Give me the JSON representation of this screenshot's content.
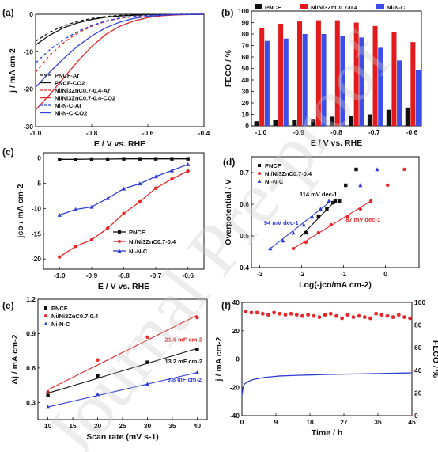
{
  "watermark": "Journal Pre-proof",
  "colors": {
    "black": "#111111",
    "red": "#e8272a",
    "blue": "#2e3fd6",
    "bar_red": "#e31a1c",
    "bar_blue": "#3d4ee8"
  },
  "chart_data": [
    {
      "id": "a",
      "panel_label": "(a)",
      "type": "line",
      "xlabel": "E / V vs. RHE",
      "ylabel": "j / mA cm-2",
      "xlim": [
        -1.0,
        -0.4
      ],
      "ylim": [
        -30,
        0
      ],
      "xticks": [
        "-1.0",
        "-0.8",
        "-0.6",
        "-0.4"
      ],
      "yticks": [
        "0",
        "-10",
        "-20",
        "-30"
      ],
      "legend_position": "bottom-left",
      "series": [
        {
          "name": "PNCF-Ar",
          "color": "#111111",
          "dash": true,
          "x": [
            -1.0,
            -0.95,
            -0.9,
            -0.85,
            -0.8,
            -0.75,
            -0.7,
            -0.65,
            -0.6,
            -0.55,
            -0.5,
            -0.45,
            -0.4
          ],
          "y": [
            -7.2,
            -4.8,
            -3.1,
            -1.9,
            -1.1,
            -0.6,
            -0.3,
            -0.15,
            -0.08,
            -0.04,
            -0.02,
            -0.01,
            0
          ]
        },
        {
          "name": "PNCF-CO2",
          "color": "#111111",
          "dash": false,
          "x": [
            -1.0,
            -0.95,
            -0.9,
            -0.85,
            -0.8,
            -0.75,
            -0.7,
            -0.65,
            -0.6,
            -0.55,
            -0.5,
            -0.45,
            -0.4
          ],
          "y": [
            -8.2,
            -5.6,
            -3.6,
            -2.3,
            -1.4,
            -0.8,
            -0.45,
            -0.25,
            -0.12,
            -0.06,
            -0.03,
            -0.01,
            0
          ]
        },
        {
          "name": "Ni/Ni3ZnC0.7-0.4-Ar",
          "color": "#e8272a",
          "dash": true,
          "x": [
            -1.0,
            -0.95,
            -0.9,
            -0.85,
            -0.8,
            -0.75,
            -0.7,
            -0.65,
            -0.6,
            -0.55,
            -0.5,
            -0.45,
            -0.4
          ],
          "y": [
            -15.5,
            -11.0,
            -7.6,
            -5.0,
            -3.2,
            -1.9,
            -1.1,
            -0.6,
            -0.3,
            -0.15,
            -0.07,
            -0.03,
            0
          ]
        },
        {
          "name": "Ni/Ni3ZnC0.7-0.4-CO2",
          "color": "#e8272a",
          "dash": false,
          "x": [
            -1.0,
            -0.95,
            -0.9,
            -0.85,
            -0.8,
            -0.75,
            -0.7,
            -0.65,
            -0.6,
            -0.55,
            -0.5,
            -0.45,
            -0.4
          ],
          "y": [
            -25.5,
            -21.5,
            -17.0,
            -12.6,
            -8.6,
            -5.4,
            -3.2,
            -1.8,
            -0.9,
            -0.4,
            -0.18,
            -0.07,
            0
          ]
        },
        {
          "name": "Ni-N-C-Ar",
          "color": "#2e3fd6",
          "dash": true,
          "x": [
            -1.0,
            -0.95,
            -0.9,
            -0.85,
            -0.8,
            -0.75,
            -0.7,
            -0.65,
            -0.6,
            -0.55,
            -0.5,
            -0.45,
            -0.4
          ],
          "y": [
            -13.0,
            -9.5,
            -6.8,
            -4.6,
            -3.0,
            -1.8,
            -1.0,
            -0.55,
            -0.28,
            -0.14,
            -0.06,
            -0.02,
            0
          ]
        },
        {
          "name": "Ni-N-C-CO2",
          "color": "#2e3fd6",
          "dash": false,
          "x": [
            -1.0,
            -0.95,
            -0.9,
            -0.85,
            -0.8,
            -0.75,
            -0.7,
            -0.65,
            -0.6,
            -0.55,
            -0.5,
            -0.45,
            -0.4
          ],
          "y": [
            -19.5,
            -15.5,
            -11.8,
            -8.5,
            -5.8,
            -3.6,
            -2.1,
            -1.1,
            -0.55,
            -0.25,
            -0.1,
            -0.04,
            0
          ]
        }
      ]
    },
    {
      "id": "b",
      "panel_label": "(b)",
      "type": "bar",
      "xlabel": "E / V vs. RHE",
      "ylabel": "FECO / %",
      "ylim": [
        0,
        100
      ],
      "yticks": [
        "0",
        "10",
        "20",
        "30",
        "40",
        "50",
        "60",
        "70",
        "80",
        "90",
        "100"
      ],
      "categories": [
        "-1.0",
        "-0.95",
        "-0.9",
        "-0.85",
        "-0.8",
        "-0.75",
        "-0.7",
        "-0.65",
        "-0.6"
      ],
      "category_tick_labels": [
        "-1.0",
        "",
        "-0.9",
        "",
        "-0.8",
        "",
        "-0.7",
        "",
        "-0.6"
      ],
      "legend_position": "top",
      "series": [
        {
          "name": "PNCF",
          "color": "#111111",
          "values": [
            4,
            5,
            5,
            6,
            8,
            9,
            10,
            14,
            16
          ]
        },
        {
          "name": "Ni/Ni3ZnC0.7-0.4",
          "color": "#e31a1c",
          "values": [
            85,
            89,
            91,
            92,
            92,
            90,
            87,
            82,
            73
          ]
        },
        {
          "name": "Ni-N-C",
          "color": "#3d4ee8",
          "values": [
            74,
            76,
            80,
            80,
            78,
            77,
            68,
            57,
            49
          ]
        }
      ]
    },
    {
      "id": "c",
      "panel_label": "(c)",
      "type": "line",
      "xlabel": "E / V vs. RHE",
      "ylabel": "jco / mA cm-2",
      "xlim": [
        -1.05,
        -0.55
      ],
      "ylim": [
        -22,
        1
      ],
      "xticks": [
        "-1.0",
        "-0.9",
        "-0.8",
        "-0.7",
        "-0.6"
      ],
      "yticks": [
        "0",
        "-5",
        "-10",
        "-15",
        "-20"
      ],
      "legend_position": "bottom-right",
      "series": [
        {
          "name": "PNCF",
          "color": "#111111",
          "marker": "square",
          "x": [
            -1.0,
            -0.95,
            -0.9,
            -0.85,
            -0.8,
            -0.75,
            -0.7,
            -0.65,
            -0.6
          ],
          "y": [
            -0.3,
            -0.3,
            -0.25,
            -0.25,
            -0.2,
            -0.2,
            -0.2,
            -0.2,
            -0.2
          ]
        },
        {
          "name": "Ni/Ni3ZnC0.7-0.4",
          "color": "#e8272a",
          "marker": "circle",
          "x": [
            -1.0,
            -0.95,
            -0.9,
            -0.85,
            -0.8,
            -0.75,
            -0.7,
            -0.65,
            -0.6
          ],
          "y": [
            -19.6,
            -17.5,
            -16.2,
            -13.9,
            -11.0,
            -8.7,
            -6.0,
            -4.2,
            -2.6
          ]
        },
        {
          "name": "Ni-N-C",
          "color": "#2e3fd6",
          "marker": "triangle",
          "x": [
            -1.0,
            -0.95,
            -0.9,
            -0.85,
            -0.8,
            -0.75,
            -0.7,
            -0.65,
            -0.6
          ],
          "y": [
            -11.3,
            -10.2,
            -9.7,
            -8.0,
            -6.1,
            -5.1,
            -3.7,
            -2.5,
            -1.3
          ]
        }
      ]
    },
    {
      "id": "d",
      "panel_label": "(d)",
      "type": "scatter",
      "xlabel": "Log(-jco/mA cm-2)",
      "ylabel": "Overpotential / V",
      "xlim": [
        -3.2,
        0.8
      ],
      "ylim": [
        0.4,
        0.75
      ],
      "xticks": [
        "-3",
        "-2",
        "-1",
        "0"
      ],
      "yticks": [
        "0.4",
        "0.5",
        "0.6",
        "0.7"
      ],
      "legend_position": "top-left",
      "series": [
        {
          "name": "PNCF",
          "color": "#111111",
          "marker": "square",
          "x": [
            -1.9,
            -1.6,
            -1.4,
            -1.25,
            -1.2,
            -1.1,
            -0.95,
            -0.7
          ],
          "y": [
            0.51,
            0.56,
            0.585,
            0.605,
            0.61,
            0.61,
            0.66,
            0.71
          ]
        },
        {
          "name": "Ni/Ni3ZnC0.7-0.4",
          "color": "#e8272a",
          "marker": "circle",
          "x": [
            -2.2,
            -1.9,
            -1.6,
            -1.3,
            -0.9,
            -0.6,
            -0.35,
            0.05,
            0.45
          ],
          "y": [
            0.46,
            0.48,
            0.51,
            0.535,
            0.56,
            0.585,
            0.61,
            0.66,
            0.71
          ]
        },
        {
          "name": "Ni-N-C",
          "color": "#2e3fd6",
          "marker": "triangle",
          "x": [
            -2.75,
            -2.45,
            -2.2,
            -1.95,
            -1.75,
            -1.55,
            -1.35,
            -0.6,
            -0.2
          ],
          "y": [
            0.46,
            0.485,
            0.51,
            0.535,
            0.56,
            0.585,
            0.61,
            0.66,
            0.71
          ]
        }
      ],
      "fit_lines": [
        {
          "color": "#111111",
          "x": [
            -2.05,
            -1.2
          ],
          "y": [
            0.495,
            0.61
          ]
        },
        {
          "color": "#e8272a",
          "x": [
            -2.2,
            -0.35
          ],
          "y": [
            0.46,
            0.61
          ]
        },
        {
          "color": "#2e3fd6",
          "x": [
            -2.75,
            -1.3
          ],
          "y": [
            0.46,
            0.61
          ]
        }
      ],
      "annotations": [
        {
          "text": "114 mV dec-1",
          "color": "#111111",
          "x": -2.05,
          "y": 0.625
        },
        {
          "text": "94 mV dec-1",
          "color": "#2e3fd6",
          "x": -2.9,
          "y": 0.535
        },
        {
          "text": "87 mV dec-1",
          "color": "#e8272a",
          "x": -0.95,
          "y": 0.545
        }
      ]
    },
    {
      "id": "e",
      "panel_label": "(e)",
      "type": "scatter",
      "xlabel": "Scan rate (mV s-1)",
      "ylabel": "Δj / mA cm-2",
      "xlim": [
        8,
        42
      ],
      "ylim": [
        0.15,
        1.2
      ],
      "xticks": [
        "10",
        "15",
        "20",
        "25",
        "30",
        "35",
        "40"
      ],
      "yticks": [
        "0.3",
        "0.6",
        "0.9",
        "1.2"
      ],
      "legend_position": "top-left",
      "series": [
        {
          "name": "PNCF",
          "color": "#111111",
          "marker": "square",
          "x": [
            10,
            20,
            30,
            40
          ],
          "y": [
            0.36,
            0.53,
            0.65,
            0.76
          ]
        },
        {
          "name": "Ni/Ni3ZnC0.7-0.4",
          "color": "#e8272a",
          "marker": "circle",
          "x": [
            10,
            20,
            30,
            40
          ],
          "y": [
            0.39,
            0.67,
            0.87,
            1.04
          ]
        },
        {
          "name": "Ni-N-C",
          "color": "#2e3fd6",
          "marker": "triangle",
          "x": [
            10,
            20,
            30,
            40
          ],
          "y": [
            0.26,
            0.37,
            0.46,
            0.56
          ]
        }
      ],
      "fit_lines": [
        {
          "color": "#111111",
          "x": [
            10,
            40
          ],
          "y": [
            0.38,
            0.77
          ]
        },
        {
          "color": "#e8272a",
          "x": [
            10,
            40
          ],
          "y": [
            0.41,
            1.06
          ]
        },
        {
          "color": "#2e3fd6",
          "x": [
            10,
            40
          ],
          "y": [
            0.26,
            0.56
          ]
        }
      ],
      "annotations": [
        {
          "text": "21.6 mF cm-2",
          "color": "#e8272a",
          "x": 33.5,
          "y": 0.83
        },
        {
          "text": "13.2 mF cm-2",
          "color": "#111111",
          "x": 33.5,
          "y": 0.64
        },
        {
          "text": "9.8 mF cm-2",
          "color": "#2e3fd6",
          "x": 34,
          "y": 0.48
        }
      ]
    },
    {
      "id": "f",
      "panel_label": "(f)",
      "type": "line",
      "xlabel": "Time / h",
      "ylabel": "j / mA cm-2",
      "ylabel_right": "FECO / %",
      "xlim": [
        0,
        45
      ],
      "ylim": [
        -40,
        40
      ],
      "ylim_right": [
        0,
        100
      ],
      "xticks": [
        "0",
        "9",
        "18",
        "27",
        "36",
        "45"
      ],
      "yticks": [
        "-40",
        "-20",
        "0",
        "20",
        "40"
      ],
      "yticks_right": [
        "0",
        "20",
        "40",
        "60",
        "80",
        "100"
      ],
      "series": [
        {
          "name": "j",
          "color": "#2e3fd6",
          "axis": "left",
          "x": [
            0,
            0.3,
            0.6,
            1,
            1.5,
            2,
            3,
            4,
            5,
            6,
            8,
            10,
            14,
            18,
            22,
            27,
            32,
            36,
            40,
            45
          ],
          "y": [
            -26,
            -20,
            -18,
            -17,
            -16,
            -15.5,
            -14.5,
            -14,
            -13.5,
            -13,
            -12.5,
            -12,
            -11.6,
            -11.3,
            -11,
            -10.7,
            -10.5,
            -10.3,
            -10.1,
            -9.8
          ]
        },
        {
          "name": "FECO",
          "color": "#e8272a",
          "axis": "right",
          "marker": "circle",
          "x": [
            1,
            2.5,
            4,
            5.5,
            7,
            8.5,
            10,
            11.5,
            13,
            14.5,
            16,
            17.5,
            19,
            20.5,
            22,
            23.5,
            25,
            26.5,
            28,
            29.5,
            31,
            32.5,
            34,
            35.5,
            37,
            38.5,
            40,
            41.5,
            43,
            44.5
          ],
          "y": [
            92,
            91,
            91,
            90,
            89,
            91,
            90,
            89,
            90,
            89,
            88,
            89,
            88,
            87,
            89,
            90,
            88,
            86,
            89,
            87,
            88,
            87,
            86,
            90,
            89,
            88,
            87,
            89,
            87,
            86
          ]
        }
      ]
    }
  ]
}
